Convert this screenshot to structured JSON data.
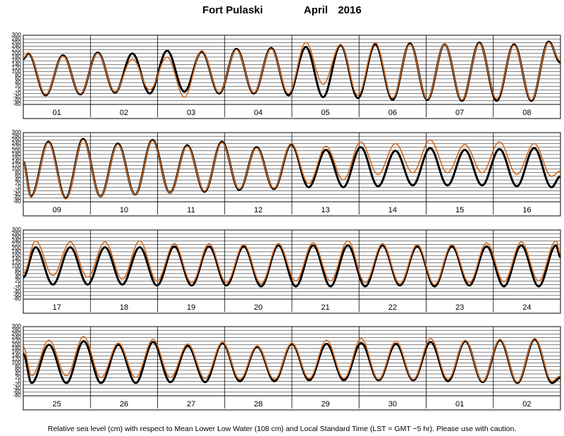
{
  "header": {
    "station": "Fort Pulaski",
    "month": "April",
    "year": "2016"
  },
  "footer": "Relative sea level (cm) with respect to Mean Lower Low Water (108 cm) and Local Standard Time (LST = GMT −5 hr). Please use with caution.",
  "chart_data": [
    {
      "type": "line",
      "categories": [
        "01",
        "02",
        "03",
        "04",
        "05",
        "06",
        "07",
        "08"
      ],
      "x": [
        0,
        1.8,
        8.0,
        14.2,
        20.4,
        26.6,
        32.8,
        39.0,
        45.2,
        51.4,
        57.6,
        63.8,
        70.0,
        76.2,
        82.4,
        88.6,
        94.8,
        101.0,
        107.2,
        113.4,
        119.6,
        125.8,
        132.0,
        138.2,
        144.4,
        150.6,
        156.8,
        163.0,
        169.2,
        175.4,
        181.6,
        187.8,
        192
      ],
      "xlim": [
        0,
        192
      ],
      "ylim": [
        -80,
        300
      ],
      "yticks": [
        -80,
        -60,
        -40,
        -20,
        0,
        20,
        40,
        60,
        80,
        100,
        120,
        140,
        160,
        180,
        200,
        220,
        240,
        260,
        280,
        300
      ],
      "grid": true,
      "series": [
        {
          "color": "#000000",
          "values": [
            170,
            200,
            -30,
            190,
            -25,
            205,
            -15,
            200,
            -20,
            215,
            -10,
            210,
            -20,
            225,
            -20,
            230,
            -30,
            235,
            -40,
            245,
            -45,
            250,
            -55,
            255,
            -55,
            250,
            -60,
            260,
            -60,
            250,
            -60,
            265,
            150
          ]
        },
        {
          "color": "#d2691e",
          "values": [
            175,
            205,
            -25,
            185,
            -20,
            200,
            -10,
            170,
            0,
            180,
            -40,
            215,
            -15,
            220,
            -15,
            225,
            -20,
            260,
            30,
            250,
            -30,
            260,
            -45,
            250,
            -50,
            250,
            -55,
            255,
            -50,
            245,
            -55,
            260,
            160
          ]
        }
      ]
    },
    {
      "type": "line",
      "categories": [
        "09",
        "10",
        "11",
        "12",
        "13",
        "14",
        "15",
        "16"
      ],
      "x": [
        0,
        2.8,
        9.0,
        15.2,
        21.4,
        27.6,
        33.8,
        40.0,
        46.2,
        52.4,
        58.6,
        64.8,
        71.0,
        77.2,
        83.4,
        89.6,
        95.8,
        102.0,
        108.2,
        114.4,
        120.6,
        126.8,
        133.0,
        139.2,
        145.4,
        151.6,
        157.8,
        164.0,
        170.2,
        176.4,
        182.6,
        188.8,
        192
      ],
      "xlim": [
        0,
        192
      ],
      "ylim": [
        -80,
        300
      ],
      "yticks": [
        -80,
        -60,
        -40,
        -20,
        0,
        20,
        40,
        60,
        80,
        100,
        120,
        140,
        160,
        180,
        200,
        220,
        240,
        260,
        280,
        300
      ],
      "grid": true,
      "series": [
        {
          "color": "#000000",
          "values": [
            140,
            -50,
            250,
            -60,
            265,
            -50,
            240,
            -40,
            260,
            -30,
            230,
            -25,
            250,
            -15,
            220,
            -10,
            235,
            0,
            205,
            0,
            220,
            5,
            200,
            10,
            215,
            10,
            205,
            10,
            210,
            5,
            215,
            0,
            60
          ]
        },
        {
          "color": "#d2691e",
          "values": [
            140,
            -55,
            245,
            -65,
            260,
            -50,
            235,
            -40,
            255,
            -30,
            225,
            -20,
            245,
            -10,
            215,
            -5,
            240,
            20,
            225,
            40,
            250,
            70,
            240,
            80,
            260,
            80,
            235,
            80,
            250,
            70,
            240,
            60,
            90
          ]
        }
      ]
    },
    {
      "type": "line",
      "categories": [
        "17",
        "18",
        "19",
        "20",
        "21",
        "22",
        "23",
        "24"
      ],
      "x": [
        0,
        4.4,
        10.6,
        16.8,
        23.0,
        29.2,
        35.4,
        41.6,
        47.8,
        54.0,
        60.2,
        66.4,
        72.6,
        78.8,
        85.0,
        91.2,
        97.4,
        103.6,
        109.8,
        116.0,
        122.2,
        128.4,
        134.6,
        140.8,
        147.0,
        153.2,
        159.4,
        165.6,
        171.8,
        178.0,
        184.2,
        190.4,
        192
      ],
      "xlim": [
        0,
        192
      ],
      "ylim": [
        -80,
        300
      ],
      "yticks": [
        -80,
        -60,
        -40,
        -20,
        0,
        20,
        40,
        60,
        80,
        100,
        120,
        140,
        160,
        180,
        200,
        220,
        240,
        260,
        280,
        300
      ],
      "grid": true,
      "series": [
        {
          "color": "#000000",
          "values": [
            40,
            205,
            0,
            205,
            0,
            205,
            0,
            205,
            -5,
            210,
            -5,
            210,
            -5,
            210,
            -10,
            215,
            -10,
            215,
            -10,
            215,
            -10,
            215,
            -5,
            210,
            -10,
            210,
            -5,
            210,
            -10,
            215,
            -10,
            215,
            150
          ]
        },
        {
          "color": "#d2691e",
          "values": [
            60,
            240,
            50,
            235,
            40,
            235,
            30,
            240,
            20,
            225,
            10,
            225,
            10,
            220,
            5,
            225,
            20,
            230,
            20,
            240,
            10,
            225,
            5,
            220,
            0,
            220,
            10,
            230,
            15,
            235,
            20,
            240,
            170
          ]
        }
      ]
    },
    {
      "type": "line",
      "categories": [
        "25",
        "26",
        "27",
        "28",
        "29",
        "30",
        "01",
        "02"
      ],
      "x": [
        0,
        3.0,
        9.2,
        15.4,
        21.6,
        27.8,
        34.0,
        40.2,
        46.4,
        52.6,
        58.8,
        65.0,
        71.2,
        77.4,
        83.6,
        89.8,
        96.0,
        102.2,
        108.4,
        114.6,
        120.8,
        127.0,
        133.2,
        139.4,
        145.6,
        151.8,
        158.0,
        164.2,
        170.4,
        176.6,
        182.8,
        189.0,
        192
      ],
      "xlim": [
        0,
        192
      ],
      "ylim": [
        -80,
        300
      ],
      "yticks": [
        -80,
        -60,
        -40,
        -20,
        0,
        20,
        40,
        60,
        80,
        100,
        120,
        140,
        160,
        180,
        200,
        220,
        240,
        260,
        280,
        300
      ],
      "grid": true,
      "series": [
        {
          "color": "#000000",
          "values": [
            150,
            -10,
            200,
            -10,
            220,
            -10,
            200,
            -10,
            215,
            -5,
            195,
            -5,
            210,
            0,
            190,
            0,
            205,
            5,
            205,
            5,
            210,
            5,
            205,
            5,
            215,
            0,
            220,
            -5,
            225,
            -10,
            230,
            -10,
            20
          ]
        },
        {
          "color": "#d2691e",
          "values": [
            190,
            30,
            225,
            30,
            245,
            20,
            210,
            20,
            230,
            20,
            205,
            15,
            215,
            10,
            195,
            10,
            210,
            15,
            225,
            15,
            235,
            10,
            220,
            10,
            235,
            10,
            225,
            0,
            230,
            -5,
            235,
            0,
            30
          ]
        }
      ]
    }
  ]
}
